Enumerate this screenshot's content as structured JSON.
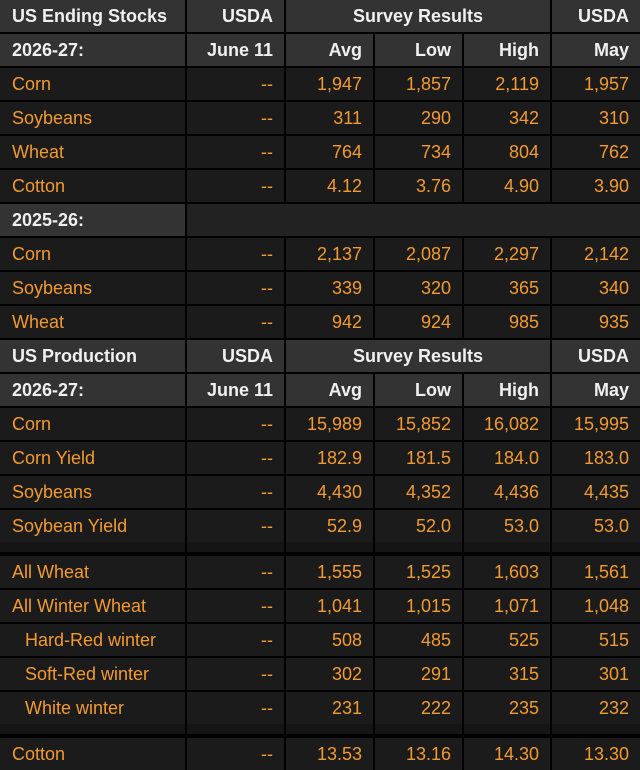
{
  "tables": [
    {
      "header": {
        "title": "US Ending Stocks",
        "source": "USDA",
        "survey": "Survey Results",
        "prior": "USDA"
      },
      "blocks": [
        {
          "label": "2026-27:",
          "columns": [
            "June 11",
            "Avg",
            "Low",
            "High",
            "May"
          ],
          "rows": [
            [
              "Corn",
              "--",
              "1,947",
              "1,857",
              "2,119",
              "1,957"
            ],
            [
              "Soybeans",
              "--",
              "311",
              "290",
              "342",
              "310"
            ],
            [
              "Wheat",
              "--",
              "764",
              "734",
              "804",
              "762"
            ],
            [
              "Cotton",
              "--",
              "4.12",
              "3.76",
              "4.90",
              "3.90"
            ]
          ]
        },
        {
          "label": "2025-26:",
          "rows": [
            [
              "Corn",
              "--",
              "2,137",
              "2,087",
              "2,297",
              "2,142"
            ],
            [
              "Soybeans",
              "--",
              "339",
              "320",
              "365",
              "340"
            ],
            [
              "Wheat",
              "--",
              "942",
              "924",
              "985",
              "935"
            ]
          ]
        }
      ]
    },
    {
      "header": {
        "title": "US Production",
        "source": "USDA",
        "survey": "Survey Results",
        "prior": "USDA"
      },
      "blocks": [
        {
          "label": "2026-27:",
          "columns": [
            "June 11",
            "Avg",
            "Low",
            "High",
            "May"
          ],
          "rows": [
            [
              "Corn",
              "--",
              "15,989",
              "15,852",
              "16,082",
              "15,995"
            ],
            [
              "Corn Yield",
              "--",
              "182.9",
              "181.5",
              "184.0",
              "183.0"
            ],
            [
              "Soybeans",
              "--",
              "4,430",
              "4,352",
              "4,436",
              "4,435"
            ],
            [
              "Soybean Yield",
              "--",
              "52.9",
              "52.0",
              "53.0",
              "53.0"
            ]
          ]
        },
        {
          "rows": [
            [
              "All Wheat",
              "--",
              "1,555",
              "1,525",
              "1,603",
              "1,561"
            ],
            [
              "All Winter Wheat",
              "--",
              "1,041",
              "1,015",
              "1,071",
              "1,048"
            ]
          ],
          "subrows": [
            [
              "Hard-Red winter",
              "--",
              "508",
              "485",
              "525",
              "515"
            ],
            [
              "Soft-Red winter",
              "--",
              "302",
              "291",
              "315",
              "301"
            ],
            [
              "White winter",
              "--",
              "231",
              "222",
              "235",
              "232"
            ]
          ]
        },
        {
          "rows": [
            [
              "Cotton",
              "--",
              "13.53",
              "13.16",
              "14.30",
              "13.30"
            ]
          ]
        }
      ]
    }
  ]
}
